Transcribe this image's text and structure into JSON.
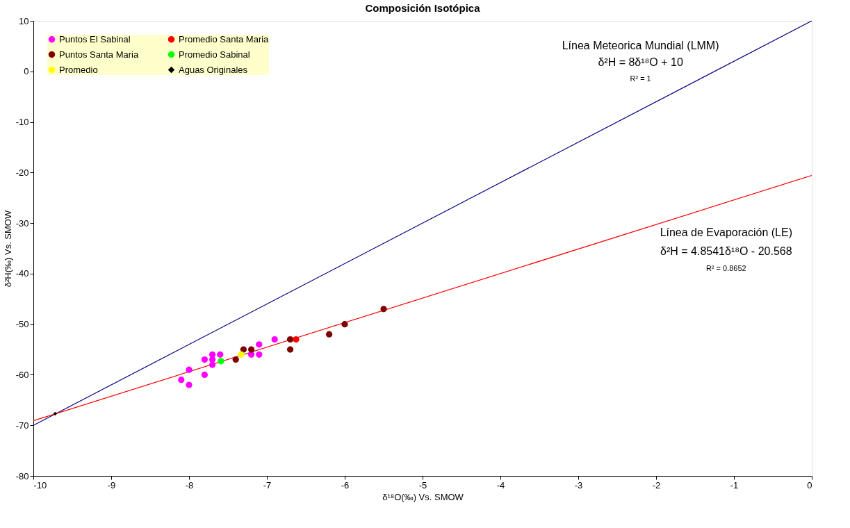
{
  "chart_data": {
    "type": "scatter",
    "title": "Composición Isotópica",
    "xlabel": "δ¹⁸O(‰) Vs. SMOW",
    "ylabel": "δ²H(‰) Vs. SMOW",
    "xlim": [
      -10,
      0
    ],
    "ylim": [
      -80,
      10
    ],
    "xticks": [
      -10,
      -9,
      -8,
      -7,
      -6,
      -5,
      -4,
      -3,
      -2,
      -1,
      0
    ],
    "yticks": [
      -80,
      -70,
      -60,
      -50,
      -40,
      -30,
      -20,
      -10,
      0,
      10
    ],
    "grid": false,
    "legend": "top left",
    "series": [
      {
        "name": "Puntos El Sabinal",
        "marker": "circle",
        "color": "#ff00ff",
        "x": [
          -8.1,
          -8.0,
          -8.0,
          -7.8,
          -7.8,
          -7.7,
          -7.7,
          -7.7,
          -7.6,
          -7.2,
          -7.1,
          -7.1,
          -6.9
        ],
        "values": [
          -61,
          -62,
          -59,
          -60,
          -57,
          -56,
          -57,
          -58,
          -56,
          -56,
          -56,
          -54,
          -53
        ]
      },
      {
        "name": "Puntos Santa Maria",
        "marker": "circle",
        "color": "#800000",
        "x": [
          -7.4,
          -7.3,
          -7.2,
          -6.7,
          -6.7,
          -6.2,
          -6.0,
          -5.5
        ],
        "values": [
          -57,
          -55,
          -55,
          -53,
          -55,
          -52,
          -50,
          -47
        ]
      },
      {
        "name": "Promedio",
        "marker": "circle",
        "color": "#ffff00",
        "x": [
          -7.33
        ],
        "values": [
          -56
        ]
      },
      {
        "name": "Promedio Santa Maria",
        "marker": "circle",
        "color": "#ff0000",
        "x": [
          -6.625
        ],
        "values": [
          -53
        ]
      },
      {
        "name": "Promedio Sabinal",
        "marker": "circle",
        "color": "#00ff00",
        "x": [
          -7.59
        ],
        "values": [
          -57.3
        ]
      },
      {
        "name": "Aguas Originales",
        "marker": "diamond",
        "color": "#000000",
        "x": [
          -9.72
        ],
        "values": [
          -67.7
        ]
      },
      {
        "type": "line",
        "marker": "none",
        "color": "#000080",
        "x": [
          -10,
          0
        ],
        "values": [
          -70,
          10
        ]
      },
      {
        "type": "line",
        "marker": "none",
        "color": "#ff0000",
        "x": [
          -10,
          0
        ],
        "values": [
          -69.1,
          -20.568
        ]
      }
    ],
    "annotations": [
      "Línea Meteorica Mundial (LMM)",
      "δ²H = 8δ¹⁸O + 10",
      "R² = 1",
      "Línea de Evaporación (LE)",
      "δ²H = 4.8541δ¹⁸O - 20.568",
      "R² = 0.8652"
    ]
  }
}
